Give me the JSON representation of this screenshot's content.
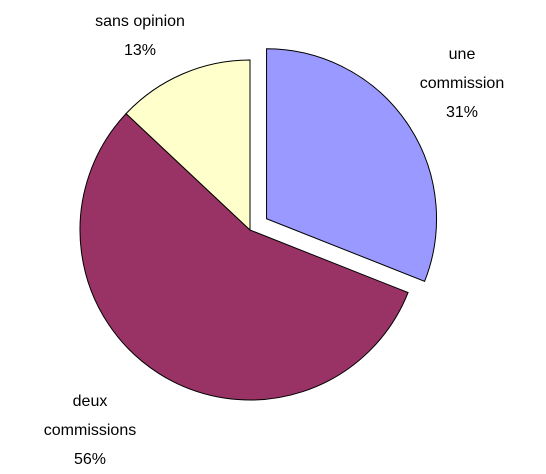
{
  "chart_data": {
    "type": "pie",
    "categories": [
      "une commission",
      "deux commissions",
      "sans opinion"
    ],
    "values": [
      31,
      56,
      13
    ],
    "value_labels": [
      "31%",
      "56%",
      "13%"
    ],
    "colors": [
      "#9999ff",
      "#993366",
      "#ffffcc"
    ],
    "explode": [
      true,
      false,
      false
    ]
  }
}
